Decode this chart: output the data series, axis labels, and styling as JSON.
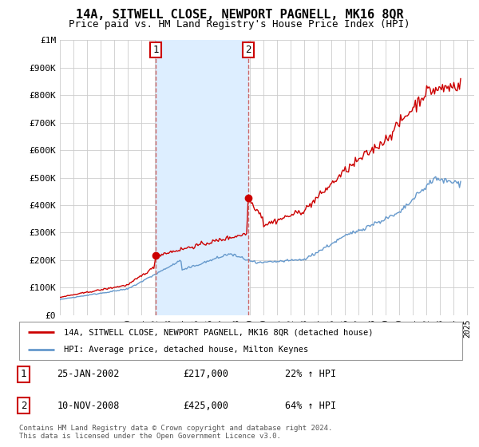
{
  "title": "14A, SITWELL CLOSE, NEWPORT PAGNELL, MK16 8QR",
  "subtitle": "Price paid vs. HM Land Registry's House Price Index (HPI)",
  "ylim": [
    0,
    1000000
  ],
  "yticks": [
    0,
    100000,
    200000,
    300000,
    400000,
    500000,
    600000,
    700000,
    800000,
    900000,
    1000000
  ],
  "ytick_labels": [
    "£0",
    "£100K",
    "£200K",
    "£300K",
    "£400K",
    "£500K",
    "£600K",
    "£700K",
    "£800K",
    "£900K",
    "£1M"
  ],
  "background_color": "#ffffff",
  "grid_color": "#cccccc",
  "sale1": {
    "date_num": 2002.07,
    "price": 217000,
    "label": "1",
    "date_str": "25-JAN-2002",
    "hpi_pct": "22% ↑ HPI"
  },
  "sale2": {
    "date_num": 2008.86,
    "price": 425000,
    "label": "2",
    "date_str": "10-NOV-2008",
    "hpi_pct": "64% ↑ HPI"
  },
  "property_color": "#cc0000",
  "hpi_color": "#6699cc",
  "shade_color": "#ddeeff",
  "vline_color": "#cc6666",
  "legend_property": "14A, SITWELL CLOSE, NEWPORT PAGNELL, MK16 8QR (detached house)",
  "legend_hpi": "HPI: Average price, detached house, Milton Keynes",
  "footnote": "Contains HM Land Registry data © Crown copyright and database right 2024.\nThis data is licensed under the Open Government Licence v3.0.",
  "xlim_min": 1995.0,
  "xlim_max": 2025.5,
  "xtick_years": [
    1995,
    1996,
    1997,
    1998,
    1999,
    2000,
    2001,
    2002,
    2003,
    2004,
    2005,
    2006,
    2007,
    2008,
    2009,
    2010,
    2011,
    2012,
    2013,
    2014,
    2015,
    2016,
    2017,
    2018,
    2019,
    2020,
    2021,
    2022,
    2023,
    2024,
    2025
  ],
  "property_data_x": [
    1995.0,
    1995.083,
    1995.167,
    1995.25,
    1995.333,
    1995.417,
    1995.5,
    1995.583,
    1995.667,
    1995.75,
    1995.833,
    1995.917,
    1996.0,
    1996.083,
    1996.167,
    1996.25,
    1996.333,
    1996.417,
    1996.5,
    1996.583,
    1996.667,
    1996.75,
    1996.833,
    1996.917,
    1997.0,
    1997.083,
    1997.167,
    1997.25,
    1997.333,
    1997.417,
    1997.5,
    1997.583,
    1997.667,
    1997.75,
    1997.833,
    1997.917,
    1998.0,
    1998.083,
    1998.167,
    1998.25,
    1998.333,
    1998.417,
    1998.5,
    1998.583,
    1998.667,
    1998.75,
    1998.833,
    1998.917,
    1999.0,
    1999.083,
    1999.167,
    1999.25,
    1999.333,
    1999.417,
    1999.5,
    1999.583,
    1999.667,
    1999.75,
    1999.833,
    1999.917,
    2000.0,
    2000.083,
    2000.167,
    2000.25,
    2000.333,
    2000.417,
    2000.5,
    2000.583,
    2000.667,
    2000.75,
    2000.833,
    2000.917,
    2001.0,
    2001.083,
    2001.167,
    2001.25,
    2001.333,
    2001.417,
    2001.5,
    2001.583,
    2001.667,
    2001.75,
    2001.833,
    2001.917,
    2002.07,
    2002.167,
    2002.25,
    2002.333,
    2002.417,
    2002.5,
    2002.583,
    2002.667,
    2002.75,
    2002.833,
    2002.917,
    2003.0,
    2003.083,
    2003.167,
    2003.25,
    2003.333,
    2003.417,
    2003.5,
    2003.583,
    2003.667,
    2003.75,
    2003.833,
    2003.917,
    2004.0,
    2004.083,
    2004.167,
    2004.25,
    2004.333,
    2004.417,
    2004.5,
    2004.583,
    2004.667,
    2004.75,
    2004.833,
    2004.917,
    2005.0,
    2005.083,
    2005.167,
    2005.25,
    2005.333,
    2005.417,
    2005.5,
    2005.583,
    2005.667,
    2005.75,
    2005.833,
    2005.917,
    2006.0,
    2006.083,
    2006.167,
    2006.25,
    2006.333,
    2006.417,
    2006.5,
    2006.583,
    2006.667,
    2006.75,
    2006.833,
    2006.917,
    2007.0,
    2007.083,
    2007.167,
    2007.25,
    2007.333,
    2007.417,
    2007.5,
    2007.583,
    2007.667,
    2007.75,
    2007.833,
    2007.917,
    2008.0,
    2008.083,
    2008.167,
    2008.25,
    2008.333,
    2008.417,
    2008.5,
    2008.583,
    2008.667,
    2008.75,
    2008.86,
    2008.917,
    2009.0,
    2009.083,
    2009.167,
    2009.25,
    2009.333,
    2009.417,
    2009.5,
    2009.583,
    2009.667,
    2009.75,
    2009.833,
    2009.917,
    2010.0,
    2010.083,
    2010.167,
    2010.25,
    2010.333,
    2010.417,
    2010.5,
    2010.583,
    2010.667,
    2010.75,
    2010.833,
    2010.917,
    2011.0,
    2011.083,
    2011.167,
    2011.25,
    2011.333,
    2011.417,
    2011.5,
    2011.583,
    2011.667,
    2011.75,
    2011.833,
    2011.917,
    2012.0,
    2012.083,
    2012.167,
    2012.25,
    2012.333,
    2012.417,
    2012.5,
    2012.583,
    2012.667,
    2012.75,
    2012.833,
    2012.917,
    2013.0,
    2013.083,
    2013.167,
    2013.25,
    2013.333,
    2013.417,
    2013.5,
    2013.583,
    2013.667,
    2013.75,
    2013.833,
    2013.917,
    2014.0,
    2014.083,
    2014.167,
    2014.25,
    2014.333,
    2014.417,
    2014.5,
    2014.583,
    2014.667,
    2014.75,
    2014.833,
    2014.917,
    2015.0,
    2015.083,
    2015.167,
    2015.25,
    2015.333,
    2015.417,
    2015.5,
    2015.583,
    2015.667,
    2015.75,
    2015.833,
    2015.917,
    2016.0,
    2016.083,
    2016.167,
    2016.25,
    2016.333,
    2016.417,
    2016.5,
    2016.583,
    2016.667,
    2016.75,
    2016.833,
    2016.917,
    2017.0,
    2017.083,
    2017.167,
    2017.25,
    2017.333,
    2017.417,
    2017.5,
    2017.583,
    2017.667,
    2017.75,
    2017.833,
    2017.917,
    2018.0,
    2018.083,
    2018.167,
    2018.25,
    2018.333,
    2018.417,
    2018.5,
    2018.583,
    2018.667,
    2018.75,
    2018.833,
    2018.917,
    2019.0,
    2019.083,
    2019.167,
    2019.25,
    2019.333,
    2019.417,
    2019.5,
    2019.583,
    2019.667,
    2019.75,
    2019.833,
    2019.917,
    2020.0,
    2020.083,
    2020.167,
    2020.25,
    2020.333,
    2020.417,
    2020.5,
    2020.583,
    2020.667,
    2020.75,
    2020.833,
    2020.917,
    2021.0,
    2021.083,
    2021.167,
    2021.25,
    2021.333,
    2021.417,
    2021.5,
    2021.583,
    2021.667,
    2021.75,
    2021.833,
    2021.917,
    2022.0,
    2022.083,
    2022.167,
    2022.25,
    2022.333,
    2022.417,
    2022.5,
    2022.583,
    2022.667,
    2022.75,
    2022.833,
    2022.917,
    2023.0,
    2023.083,
    2023.167,
    2023.25,
    2023.333,
    2023.417,
    2023.5,
    2023.583,
    2023.667,
    2023.75,
    2023.833,
    2023.917,
    2024.0,
    2024.083,
    2024.167,
    2024.25,
    2024.333,
    2024.417,
    2024.5
  ],
  "hpi_data_x": [
    1995.0,
    1995.083,
    1995.167,
    1995.25,
    1995.333,
    1995.417,
    1995.5,
    1995.583,
    1995.667,
    1995.75,
    1995.833,
    1995.917,
    1996.0,
    1996.083,
    1996.167,
    1996.25,
    1996.333,
    1996.417,
    1996.5,
    1996.583,
    1996.667,
    1996.75,
    1996.833,
    1996.917,
    1997.0,
    1997.083,
    1997.167,
    1997.25,
    1997.333,
    1997.417,
    1997.5,
    1997.583,
    1997.667,
    1997.75,
    1997.833,
    1997.917,
    1998.0,
    1998.083,
    1998.167,
    1998.25,
    1998.333,
    1998.417,
    1998.5,
    1998.583,
    1998.667,
    1998.75,
    1998.833,
    1998.917,
    1999.0,
    1999.083,
    1999.167,
    1999.25,
    1999.333,
    1999.417,
    1999.5,
    1999.583,
    1999.667,
    1999.75,
    1999.833,
    1999.917,
    2000.0,
    2000.083,
    2000.167,
    2000.25,
    2000.333,
    2000.417,
    2000.5,
    2000.583,
    2000.667,
    2000.75,
    2000.833,
    2000.917,
    2001.0,
    2001.083,
    2001.167,
    2001.25,
    2001.333,
    2001.417,
    2001.5,
    2001.583,
    2001.667,
    2001.75,
    2001.833,
    2001.917,
    2002.0,
    2002.083,
    2002.167,
    2002.25,
    2002.333,
    2002.417,
    2002.5,
    2002.583,
    2002.667,
    2002.75,
    2002.833,
    2002.917,
    2003.0,
    2003.083,
    2003.167,
    2003.25,
    2003.333,
    2003.417,
    2003.5,
    2003.583,
    2003.667,
    2003.75,
    2003.833,
    2003.917,
    2004.0,
    2004.083,
    2004.167,
    2004.25,
    2004.333,
    2004.417,
    2004.5,
    2004.583,
    2004.667,
    2004.75,
    2004.833,
    2004.917,
    2005.0,
    2005.083,
    2005.167,
    2005.25,
    2005.333,
    2005.417,
    2005.5,
    2005.583,
    2005.667,
    2005.75,
    2005.833,
    2005.917,
    2006.0,
    2006.083,
    2006.167,
    2006.25,
    2006.333,
    2006.417,
    2006.5,
    2006.583,
    2006.667,
    2006.75,
    2006.833,
    2006.917,
    2007.0,
    2007.083,
    2007.167,
    2007.25,
    2007.333,
    2007.417,
    2007.5,
    2007.583,
    2007.667,
    2007.75,
    2007.833,
    2007.917,
    2008.0,
    2008.083,
    2008.167,
    2008.25,
    2008.333,
    2008.417,
    2008.5,
    2008.583,
    2008.667,
    2008.75,
    2008.833,
    2008.917,
    2009.0,
    2009.083,
    2009.167,
    2009.25,
    2009.333,
    2009.417,
    2009.5,
    2009.583,
    2009.667,
    2009.75,
    2009.833,
    2009.917,
    2010.0,
    2010.083,
    2010.167,
    2010.25,
    2010.333,
    2010.417,
    2010.5,
    2010.583,
    2010.667,
    2010.75,
    2010.833,
    2010.917,
    2011.0,
    2011.083,
    2011.167,
    2011.25,
    2011.333,
    2011.417,
    2011.5,
    2011.583,
    2011.667,
    2011.75,
    2011.833,
    2011.917,
    2012.0,
    2012.083,
    2012.167,
    2012.25,
    2012.333,
    2012.417,
    2012.5,
    2012.583,
    2012.667,
    2012.75,
    2012.833,
    2012.917,
    2013.0,
    2013.083,
    2013.167,
    2013.25,
    2013.333,
    2013.417,
    2013.5,
    2013.583,
    2013.667,
    2013.75,
    2013.833,
    2013.917,
    2014.0,
    2014.083,
    2014.167,
    2014.25,
    2014.333,
    2014.417,
    2014.5,
    2014.583,
    2014.667,
    2014.75,
    2014.833,
    2014.917,
    2015.0,
    2015.083,
    2015.167,
    2015.25,
    2015.333,
    2015.417,
    2015.5,
    2015.583,
    2015.667,
    2015.75,
    2015.833,
    2015.917,
    2016.0,
    2016.083,
    2016.167,
    2016.25,
    2016.333,
    2016.417,
    2016.5,
    2016.583,
    2016.667,
    2016.75,
    2016.833,
    2016.917,
    2017.0,
    2017.083,
    2017.167,
    2017.25,
    2017.333,
    2017.417,
    2017.5,
    2017.583,
    2017.667,
    2017.75,
    2017.833,
    2017.917,
    2018.0,
    2018.083,
    2018.167,
    2018.25,
    2018.333,
    2018.417,
    2018.5,
    2018.583,
    2018.667,
    2018.75,
    2018.833,
    2018.917,
    2019.0,
    2019.083,
    2019.167,
    2019.25,
    2019.333,
    2019.417,
    2019.5,
    2019.583,
    2019.667,
    2019.75,
    2019.833,
    2019.917,
    2020.0,
    2020.083,
    2020.167,
    2020.25,
    2020.333,
    2020.417,
    2020.5,
    2020.583,
    2020.667,
    2020.75,
    2020.833,
    2020.917,
    2021.0,
    2021.083,
    2021.167,
    2021.25,
    2021.333,
    2021.417,
    2021.5,
    2021.583,
    2021.667,
    2021.75,
    2021.833,
    2021.917,
    2022.0,
    2022.083,
    2022.167,
    2022.25,
    2022.333,
    2022.417,
    2022.5,
    2022.583,
    2022.667,
    2022.75,
    2022.833,
    2022.917,
    2023.0,
    2023.083,
    2023.167,
    2023.25,
    2023.333,
    2023.417,
    2023.5,
    2023.583,
    2023.667,
    2023.75,
    2023.833,
    2023.917,
    2024.0,
    2024.083,
    2024.167,
    2024.25,
    2024.333,
    2024.417,
    2024.5
  ]
}
